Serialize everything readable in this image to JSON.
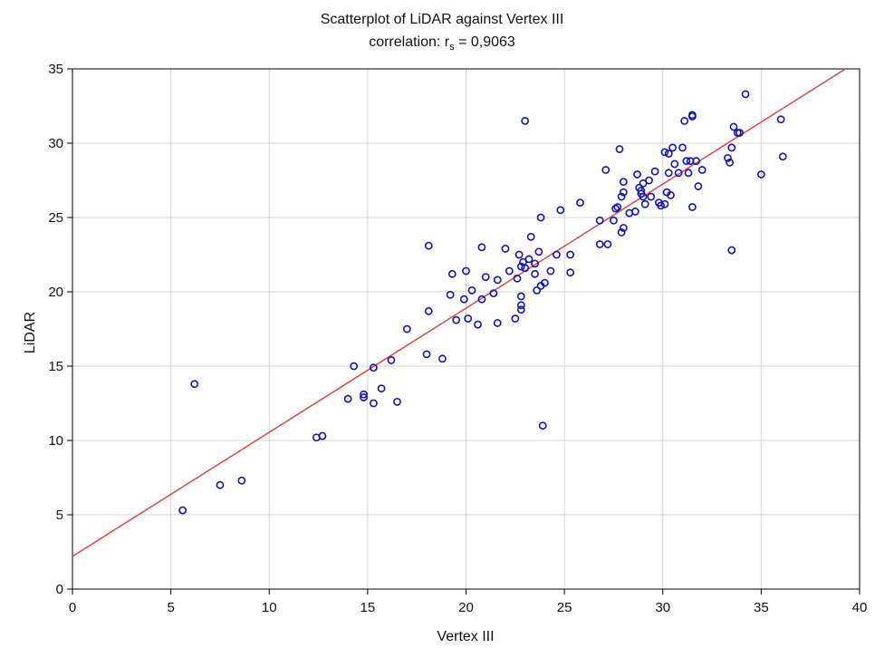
{
  "chart_data": {
    "type": "scatter",
    "title": "Scatterplot of LiDAR against Vertex III",
    "subtitle_prefix": "correlation: r",
    "subtitle_subscript": "s",
    "subtitle_suffix": " = 0,9063",
    "xlabel": "Vertex III",
    "ylabel": "LiDAR",
    "xlim": [
      0,
      40
    ],
    "ylim": [
      0,
      35
    ],
    "xticks": [
      0,
      5,
      10,
      15,
      20,
      25,
      30,
      35,
      40
    ],
    "yticks": [
      0,
      5,
      10,
      15,
      20,
      25,
      30,
      35
    ],
    "grid": true,
    "point_color": "#1414b4",
    "line_color": "#d94a4a",
    "grid_color": "#d4d4d4",
    "fit_line": {
      "x": [
        0,
        40
      ],
      "y": [
        2.2,
        35.6
      ]
    },
    "series": [
      {
        "x": [
          5.6,
          6.2,
          7.5,
          8.6,
          12.4,
          12.7,
          14.0,
          14.3,
          14.8,
          14.8,
          15.3,
          15.3,
          15.7,
          16.2,
          16.5,
          17.0,
          18.0,
          18.1,
          18.1,
          18.8,
          19.2,
          19.3,
          19.5,
          19.9,
          20.0,
          20.1,
          20.3,
          20.6,
          20.8,
          20.8,
          21.0,
          21.4,
          21.6,
          21.6,
          22.0,
          22.2,
          22.5,
          22.6,
          22.7,
          22.8,
          22.8,
          22.8,
          22.8,
          22.9,
          23.0,
          23.2,
          23.3,
          23.5,
          23.5,
          23.6,
          23.7,
          23.8,
          23.8,
          24.0,
          24.3,
          24.6,
          24.8,
          25.3,
          25.3,
          25.8,
          26.8,
          26.8,
          27.1,
          27.2,
          27.5,
          27.6,
          27.7,
          27.8,
          27.9,
          27.9,
          28.0,
          28.0,
          28.0,
          28.3,
          28.6,
          28.7,
          28.8,
          28.9,
          28.9,
          29.0,
          29.0,
          29.1,
          29.3,
          29.4,
          29.6,
          29.8,
          29.9,
          30.1,
          30.1,
          30.2,
          30.3,
          30.3,
          30.4,
          30.5,
          30.6,
          30.8,
          31.0,
          31.1,
          31.2,
          31.3,
          31.4,
          31.5,
          31.5,
          31.5,
          31.7,
          31.8,
          32.0,
          33.3,
          33.4,
          33.5,
          33.5,
          33.6,
          33.8,
          33.9,
          34.2,
          35.0,
          36.0,
          36.1,
          23.0,
          23.9
        ],
        "y": [
          5.3,
          13.8,
          7.0,
          7.3,
          10.2,
          10.3,
          12.8,
          15.0,
          12.9,
          13.1,
          12.5,
          14.9,
          13.5,
          15.4,
          12.6,
          17.5,
          15.8,
          18.7,
          23.1,
          15.5,
          19.8,
          21.2,
          18.1,
          19.5,
          21.4,
          18.2,
          20.1,
          17.8,
          19.5,
          23.0,
          21.0,
          19.9,
          20.8,
          17.9,
          22.9,
          21.4,
          18.2,
          20.9,
          22.5,
          19.1,
          19.7,
          18.8,
          21.7,
          22.0,
          21.6,
          22.2,
          23.7,
          21.2,
          21.9,
          20.1,
          22.7,
          25.0,
          20.4,
          20.6,
          21.4,
          22.5,
          25.5,
          21.3,
          22.5,
          26.0,
          24.8,
          23.2,
          28.2,
          23.2,
          24.8,
          25.6,
          25.7,
          29.6,
          24.0,
          26.4,
          26.7,
          24.3,
          27.4,
          25.3,
          25.4,
          27.9,
          27.0,
          26.6,
          26.8,
          27.3,
          26.4,
          25.9,
          27.5,
          26.4,
          28.1,
          26.0,
          25.8,
          29.4,
          25.9,
          26.7,
          28.0,
          29.3,
          26.5,
          29.7,
          28.6,
          28.0,
          29.7,
          31.5,
          28.8,
          28.0,
          28.8,
          31.8,
          25.7,
          31.9,
          28.8,
          27.1,
          28.2,
          29.0,
          28.7,
          29.7,
          22.8,
          31.1,
          30.7,
          30.7,
          33.3,
          27.9,
          31.6,
          29.1,
          31.5,
          11.0
        ]
      }
    ]
  }
}
